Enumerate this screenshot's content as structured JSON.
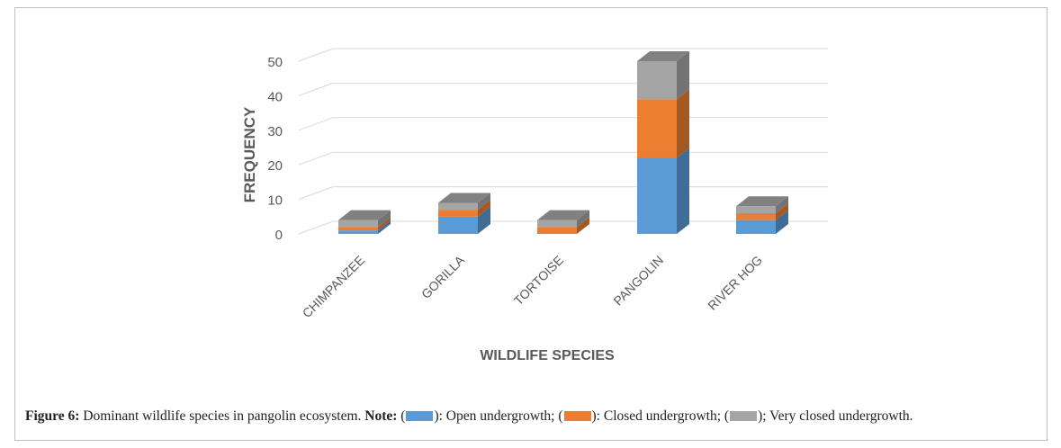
{
  "chart_data": {
    "type": "bar",
    "stacked": true,
    "style": "3d",
    "xlabel": "WILDLIFE SPECIES",
    "ylabel": "FREQUENCY",
    "ylim": [
      0,
      50
    ],
    "yticks": [
      0,
      10,
      20,
      30,
      40,
      50
    ],
    "grid": true,
    "categories": [
      "CHIMPANZEE",
      "GORILLA",
      "TORTOISE",
      "PANGOLIN",
      "RIVER HOG"
    ],
    "series": [
      {
        "values": [
          1,
          5,
          0,
          22,
          4
        ],
        "color": "#5b9bd5"
      },
      {
        "values": [
          1,
          2,
          2,
          17,
          2
        ],
        "color": "#ed7d31"
      },
      {
        "values": [
          2,
          2,
          2,
          11,
          2
        ],
        "color": "#a5a5a5"
      }
    ]
  },
  "caption": {
    "figure_label": "Figure 6:",
    "figure_text": " Dominant wildlife species in pangolin ecosystem. ",
    "note_label": "Note:",
    "open_paren_1": " (",
    "series_1_text": "): Open undergrowth; (",
    "series_2_text": "): Closed undergrowth; (",
    "series_3_text": "); Very closed undergrowth."
  }
}
